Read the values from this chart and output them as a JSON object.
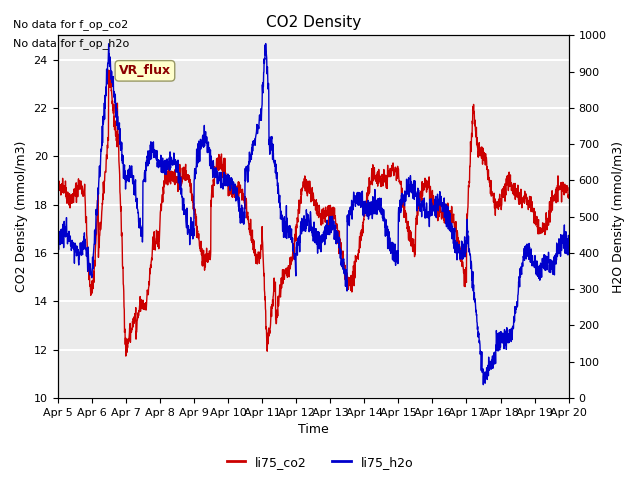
{
  "title": "CO2 Density",
  "xlabel": "Time",
  "ylabel_left": "CO2 Density (mmol/m3)",
  "ylabel_right": "H2O Density (mmol/m3)",
  "text_no_data_co2": "No data for f_op_co2",
  "text_no_data_h2o": "No data for f_op_h2o",
  "vr_flux_label": "VR_flux",
  "legend_co2": "li75_co2",
  "legend_h2o": "li75_h2o",
  "color_co2": "#cc0000",
  "color_h2o": "#0000cc",
  "ylim_left": [
    10,
    25
  ],
  "ylim_right": [
    0,
    1000
  ],
  "yticks_left": [
    10,
    12,
    14,
    16,
    18,
    20,
    22,
    24
  ],
  "yticks_right": [
    0,
    100,
    200,
    300,
    400,
    500,
    600,
    700,
    800,
    900,
    1000
  ],
  "xtick_labels": [
    "Apr 5",
    "Apr 6",
    "Apr 7",
    "Apr 8",
    "Apr 9",
    "Apr 10",
    "Apr 11",
    "Apr 12",
    "Apr 13",
    "Apr 14",
    "Apr 15",
    "Apr 16",
    "Apr 17",
    "Apr 18",
    "Apr 19",
    "Apr 20"
  ],
  "background_color": "#ebebeb",
  "grid_color": "#ffffff",
  "vr_flux_bg": "#ffffcc",
  "vr_flux_text_color": "#8b0000",
  "n_points": 2000
}
